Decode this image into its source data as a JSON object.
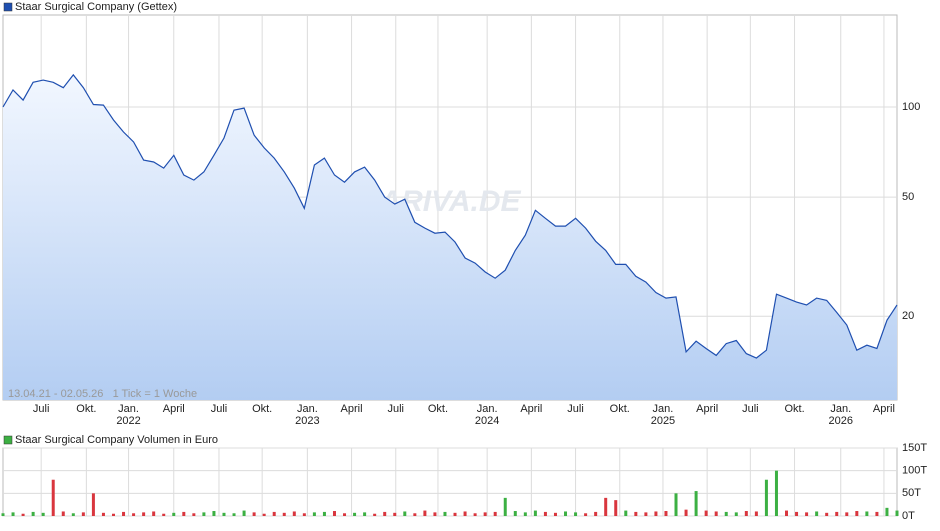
{
  "chart_data": [
    {
      "type": "line",
      "title": "Staar Surgical Company (Gettex)",
      "range_note": "13.04.21 - 02.05.26   1 Tick = 1 Woche",
      "watermark": "ARIVA.DE",
      "log_scale": true,
      "grid": true,
      "ylim": [
        10.5,
        203
      ],
      "yticks": [
        20,
        50,
        100
      ],
      "xlim": [
        0,
        89
      ],
      "xticks": [
        {
          "value": 3.8,
          "label": "Juli"
        },
        {
          "value": 8.3,
          "label": "Okt."
        },
        {
          "value": 12.5,
          "label": "Jan."
        },
        {
          "value": 17.0,
          "label": "April"
        },
        {
          "value": 21.5,
          "label": "Juli"
        },
        {
          "value": 25.8,
          "label": "Okt."
        },
        {
          "value": 30.3,
          "label": "Jan."
        },
        {
          "value": 34.7,
          "label": "April"
        },
        {
          "value": 39.1,
          "label": "Juli"
        },
        {
          "value": 43.3,
          "label": "Okt."
        },
        {
          "value": 48.2,
          "label": "Jan."
        },
        {
          "value": 52.6,
          "label": "April"
        },
        {
          "value": 57.0,
          "label": "Juli"
        },
        {
          "value": 61.4,
          "label": "Okt."
        },
        {
          "value": 65.7,
          "label": "Jan."
        },
        {
          "value": 70.1,
          "label": "April"
        },
        {
          "value": 74.4,
          "label": "Juli"
        },
        {
          "value": 78.8,
          "label": "Okt."
        },
        {
          "value": 83.4,
          "label": "Jan."
        },
        {
          "value": 87.7,
          "label": "April"
        }
      ],
      "year_labels": [
        {
          "value": 12.5,
          "label": "2022"
        },
        {
          "value": 30.3,
          "label": "2023"
        },
        {
          "value": 48.2,
          "label": "2024"
        },
        {
          "value": 65.7,
          "label": "2025"
        },
        {
          "value": 83.4,
          "label": "2026"
        }
      ],
      "series": [
        {
          "name": "Staar Surgical Company (Gettex)",
          "color": "#1f4fb0",
          "values": [
            100,
            114,
            105.5,
            121,
            123,
            121,
            116,
            128,
            116,
            102,
            101.5,
            90.5,
            82.5,
            76.4,
            66.5,
            65.5,
            62.5,
            69,
            59.3,
            57,
            60.7,
            69,
            78.8,
            97.7,
            99.2,
            80.6,
            73,
            67.5,
            60.7,
            53.6,
            45.9,
            64,
            67.5,
            59.3,
            56.1,
            60.7,
            63,
            57,
            50,
            47.4,
            49.2,
            41.2,
            39.4,
            37.9,
            38.2,
            35.4,
            31.3,
            30.1,
            28.1,
            26.8,
            28.5,
            33.2,
            37.3,
            45.2,
            42.5,
            40,
            40,
            42.5,
            39.4,
            35.6,
            33.2,
            29.8,
            29.8,
            27.2,
            26,
            24,
            23,
            23.2,
            15.2,
            16.5,
            15.6,
            14.8,
            16.2,
            16.6,
            15,
            14.5,
            15.4,
            23.7,
            23,
            22.3,
            21.8,
            23,
            22.6,
            20.6,
            18.7,
            15.4,
            16,
            15.6,
            19.4,
            21.8
          ]
        }
      ]
    },
    {
      "type": "bar",
      "title": "Staar Surgical Company Volumen in Euro",
      "color": "#3cb043",
      "down_color": "#d9363e",
      "grid": true,
      "ylim": [
        0,
        150
      ],
      "yticks": [
        {
          "value": 0,
          "label": "0T"
        },
        {
          "value": 50,
          "label": "50T"
        },
        {
          "value": 100,
          "label": "100T"
        },
        {
          "value": 150,
          "label": "150T"
        }
      ],
      "values": [
        6,
        8,
        5,
        9,
        7,
        80,
        10,
        6,
        8,
        50,
        7,
        5,
        9,
        6,
        8,
        10,
        5,
        7,
        9,
        6,
        8,
        11,
        7,
        6,
        12,
        8,
        5,
        9,
        7,
        10,
        6,
        8,
        9,
        11,
        6,
        7,
        8,
        5,
        9,
        7,
        10,
        6,
        12,
        8,
        9,
        7,
        10,
        6,
        8,
        9,
        40,
        11,
        8,
        12,
        9,
        7,
        10,
        8,
        6,
        9,
        40,
        35,
        12,
        9,
        8,
        10,
        11,
        50,
        14,
        55,
        12,
        10,
        9,
        8,
        11,
        10,
        80,
        100,
        12,
        9,
        8,
        10,
        7,
        9,
        8,
        11,
        10,
        9,
        18,
        12
      ]
    }
  ]
}
